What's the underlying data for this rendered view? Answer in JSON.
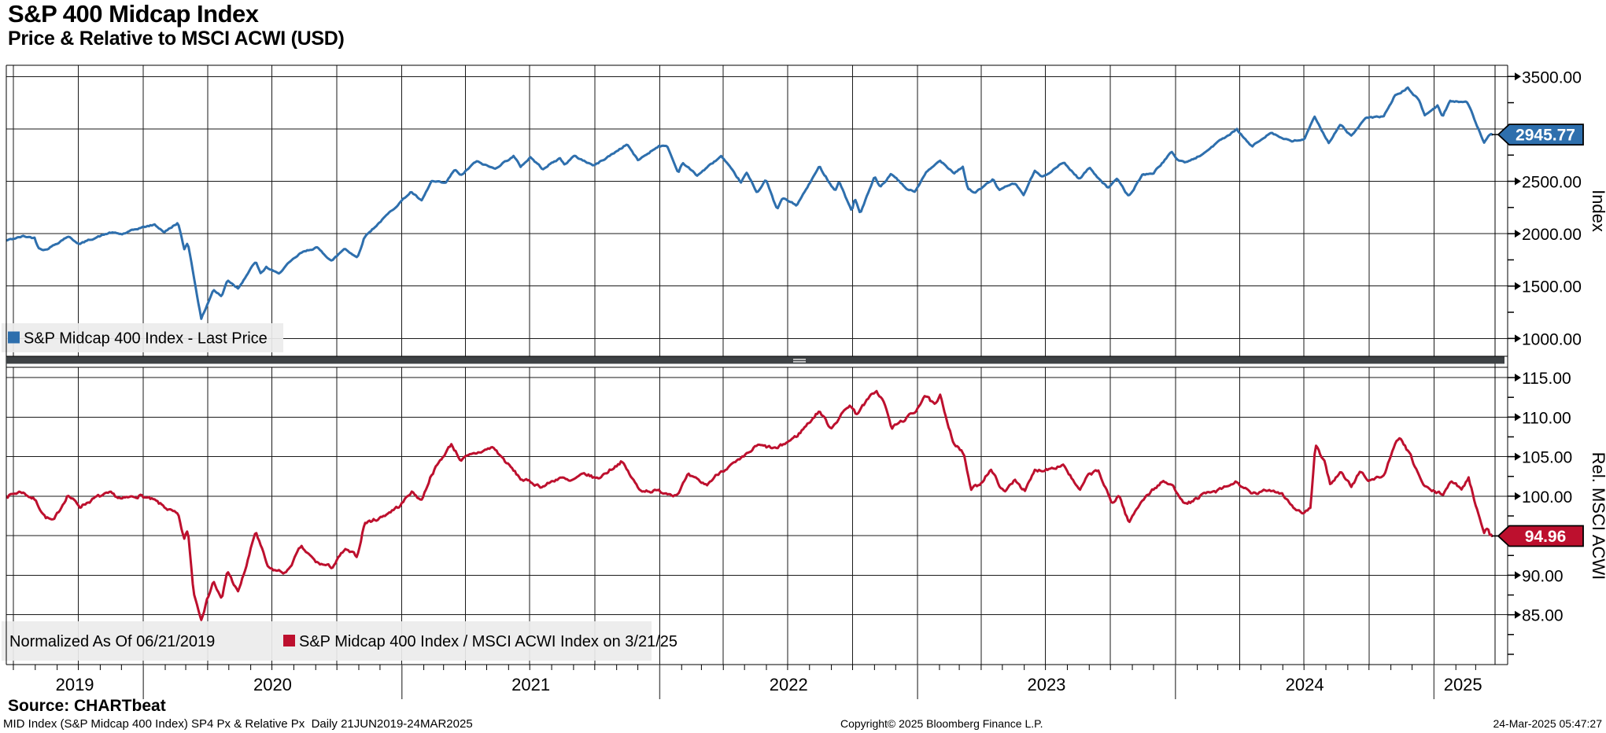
{
  "header": {
    "title": "S&P 400 Midcap Index",
    "subtitle": "Price & Relative to MSCI ACWI (USD)"
  },
  "footer": {
    "source": "Source: CHARTbeat",
    "left": "MID Index (S&P Midcap 400 Index) SP4 Px & Relative Px  Daily 21JUN2019-24MAR2025",
    "center": "Copyright© 2025 Bloomberg Finance L.P.",
    "right": "24-Mar-2025 05:47:27"
  },
  "x_axis": {
    "start": "2019-06-21",
    "end": "2025-03-24",
    "years": [
      "2019",
      "2020",
      "2021",
      "2022",
      "2023",
      "2024",
      "2025"
    ]
  },
  "chart_data": [
    {
      "type": "line",
      "panel": "price",
      "legend": "S&P Midcap 400 Index - Last Price",
      "axis_title": "Index",
      "color": "#2e6fad",
      "ylim": [
        830,
        3607
      ],
      "grid": true,
      "legend_position": "bottom-left-inside",
      "yticks": [
        {
          "v": 1000,
          "label": "1000.00"
        },
        {
          "v": 1500,
          "label": "1500.00"
        },
        {
          "v": 2000,
          "label": "2000.00"
        },
        {
          "v": 2500,
          "label": "2500.00"
        },
        {
          "v": 3000,
          "label": "3000.00"
        },
        {
          "v": 3500,
          "label": "3500.00"
        }
      ],
      "minor_step": 250,
      "last": {
        "value": 2945.77,
        "label": "2945.77"
      },
      "anchors": [
        [
          "2019-06-21",
          1935
        ],
        [
          "2019-07-15",
          1975
        ],
        [
          "2019-07-31",
          1960
        ],
        [
          "2019-08-05",
          1870
        ],
        [
          "2019-08-15",
          1845
        ],
        [
          "2019-08-30",
          1900
        ],
        [
          "2019-09-16",
          1975
        ],
        [
          "2019-10-03",
          1900
        ],
        [
          "2019-10-18",
          1945
        ],
        [
          "2019-11-15",
          2010
        ],
        [
          "2019-12-02",
          1995
        ],
        [
          "2019-12-27",
          2055
        ],
        [
          "2020-01-17",
          2085
        ],
        [
          "2020-01-31",
          2015
        ],
        [
          "2020-02-19",
          2105
        ],
        [
          "2020-02-28",
          1850
        ],
        [
          "2020-03-04",
          1920
        ],
        [
          "2020-03-23",
          1185
        ],
        [
          "2020-04-09",
          1465
        ],
        [
          "2020-04-21",
          1400
        ],
        [
          "2020-04-29",
          1560
        ],
        [
          "2020-05-14",
          1480
        ],
        [
          "2020-06-08",
          1735
        ],
        [
          "2020-06-15",
          1615
        ],
        [
          "2020-06-23",
          1680
        ],
        [
          "2020-07-10",
          1615
        ],
        [
          "2020-07-22",
          1700
        ],
        [
          "2020-08-11",
          1815
        ],
        [
          "2020-09-02",
          1870
        ],
        [
          "2020-09-24",
          1740
        ],
        [
          "2020-10-12",
          1860
        ],
        [
          "2020-10-30",
          1770
        ],
        [
          "2020-11-09",
          1970
        ],
        [
          "2020-11-30",
          2105
        ],
        [
          "2020-12-31",
          2310
        ],
        [
          "2021-01-14",
          2400
        ],
        [
          "2021-01-29",
          2310
        ],
        [
          "2021-02-12",
          2500
        ],
        [
          "2021-03-04",
          2480
        ],
        [
          "2021-03-17",
          2615
        ],
        [
          "2021-03-25",
          2550
        ],
        [
          "2021-04-16",
          2690
        ],
        [
          "2021-05-12",
          2620
        ],
        [
          "2021-06-08",
          2740
        ],
        [
          "2021-06-18",
          2640
        ],
        [
          "2021-07-02",
          2730
        ],
        [
          "2021-07-19",
          2620
        ],
        [
          "2021-08-13",
          2720
        ],
        [
          "2021-08-19",
          2660
        ],
        [
          "2021-09-02",
          2740
        ],
        [
          "2021-09-30",
          2650
        ],
        [
          "2021-10-26",
          2760
        ],
        [
          "2021-11-16",
          2855
        ],
        [
          "2021-12-01",
          2700
        ],
        [
          "2021-12-31",
          2840
        ],
        [
          "2022-01-12",
          2830
        ],
        [
          "2022-01-27",
          2580
        ],
        [
          "2022-02-02",
          2680
        ],
        [
          "2022-02-23",
          2555
        ],
        [
          "2022-03-29",
          2740
        ],
        [
          "2022-04-26",
          2490
        ],
        [
          "2022-05-04",
          2580
        ],
        [
          "2022-05-19",
          2390
        ],
        [
          "2022-05-31",
          2520
        ],
        [
          "2022-06-16",
          2230
        ],
        [
          "2022-06-24",
          2340
        ],
        [
          "2022-07-14",
          2270
        ],
        [
          "2022-08-15",
          2640
        ],
        [
          "2022-09-06",
          2410
        ],
        [
          "2022-09-12",
          2500
        ],
        [
          "2022-09-30",
          2210
        ],
        [
          "2022-10-04",
          2340
        ],
        [
          "2022-10-12",
          2195
        ],
        [
          "2022-11-01",
          2540
        ],
        [
          "2022-11-09",
          2440
        ],
        [
          "2022-11-25",
          2570
        ],
        [
          "2022-12-16",
          2430
        ],
        [
          "2022-12-28",
          2400
        ],
        [
          "2023-01-13",
          2580
        ],
        [
          "2023-02-02",
          2700
        ],
        [
          "2023-02-22",
          2580
        ],
        [
          "2023-03-06",
          2640
        ],
        [
          "2023-03-13",
          2430
        ],
        [
          "2023-03-24",
          2390
        ],
        [
          "2023-04-18",
          2520
        ],
        [
          "2023-04-26",
          2420
        ],
        [
          "2023-05-19",
          2480
        ],
        [
          "2023-05-31",
          2370
        ],
        [
          "2023-06-16",
          2600
        ],
        [
          "2023-06-26",
          2540
        ],
        [
          "2023-07-27",
          2680
        ],
        [
          "2023-08-18",
          2520
        ],
        [
          "2023-09-01",
          2630
        ],
        [
          "2023-09-27",
          2440
        ],
        [
          "2023-10-11",
          2520
        ],
        [
          "2023-10-27",
          2350
        ],
        [
          "2023-11-15",
          2560
        ],
        [
          "2023-12-01",
          2580
        ],
        [
          "2023-12-27",
          2780
        ],
        [
          "2024-01-05",
          2700
        ],
        [
          "2024-01-17",
          2680
        ],
        [
          "2024-02-09",
          2760
        ],
        [
          "2024-02-29",
          2870
        ],
        [
          "2024-03-28",
          2990
        ],
        [
          "2024-04-18",
          2830
        ],
        [
          "2024-05-15",
          2970
        ],
        [
          "2024-05-31",
          2910
        ],
        [
          "2024-06-14",
          2880
        ],
        [
          "2024-07-01",
          2900
        ],
        [
          "2024-07-16",
          3110
        ],
        [
          "2024-08-05",
          2870
        ],
        [
          "2024-08-22",
          3040
        ],
        [
          "2024-09-06",
          2930
        ],
        [
          "2024-09-26",
          3100
        ],
        [
          "2024-10-22",
          3120
        ],
        [
          "2024-11-06",
          3310
        ],
        [
          "2024-11-25",
          3390
        ],
        [
          "2024-12-11",
          3270
        ],
        [
          "2024-12-19",
          3130
        ],
        [
          "2025-01-06",
          3220
        ],
        [
          "2025-01-13",
          3120
        ],
        [
          "2025-01-24",
          3270
        ],
        [
          "2025-02-18",
          3250
        ],
        [
          "2025-02-28",
          3080
        ],
        [
          "2025-03-13",
          2870
        ],
        [
          "2025-03-21",
          2940
        ],
        [
          "2025-03-24",
          2945.77
        ]
      ]
    },
    {
      "type": "line",
      "panel": "relative",
      "legend_note": "Normalized As Of 06/21/2019",
      "legend": "S&P Midcap 400 Index / MSCI ACWI Index on 3/21/25",
      "axis_title": "Rel. MSCI ACWI",
      "color": "#bd102e",
      "ylim": [
        78.7,
        116.3
      ],
      "grid": true,
      "legend_position": "bottom-left-inside",
      "yticks": [
        {
          "v": 85,
          "label": "85.00"
        },
        {
          "v": 90,
          "label": "90.00"
        },
        {
          "v": 95,
          "label": "95.00"
        },
        {
          "v": 100,
          "label": "100.00"
        },
        {
          "v": 105,
          "label": "105.00"
        },
        {
          "v": 110,
          "label": "110.00"
        },
        {
          "v": 115,
          "label": "115.00"
        }
      ],
      "minor_step": 2.5,
      "last": {
        "value": 94.96,
        "label": "94.96"
      },
      "anchors": [
        [
          "2019-06-21",
          100
        ],
        [
          "2019-07-12",
          100.6
        ],
        [
          "2019-07-31",
          99.6
        ],
        [
          "2019-08-15",
          97.4
        ],
        [
          "2019-08-27",
          96.8
        ],
        [
          "2019-09-16",
          100.2
        ],
        [
          "2019-10-03",
          98.7
        ],
        [
          "2019-10-28",
          99.9
        ],
        [
          "2019-11-15",
          100.3
        ],
        [
          "2019-12-02",
          99.6
        ],
        [
          "2019-12-27",
          100.1
        ],
        [
          "2020-01-17",
          99.4
        ],
        [
          "2020-02-19",
          97.6
        ],
        [
          "2020-02-28",
          94.5
        ],
        [
          "2020-03-04",
          95.8
        ],
        [
          "2020-03-12",
          88.0
        ],
        [
          "2020-03-18",
          86.0
        ],
        [
          "2020-03-23",
          84.6
        ],
        [
          "2020-04-09",
          89.3
        ],
        [
          "2020-04-21",
          86.8
        ],
        [
          "2020-04-29",
          90.6
        ],
        [
          "2020-05-14",
          87.8
        ],
        [
          "2020-05-26",
          91.2
        ],
        [
          "2020-06-08",
          95.6
        ],
        [
          "2020-06-26",
          90.8
        ],
        [
          "2020-07-22",
          90.3
        ],
        [
          "2020-08-11",
          93.6
        ],
        [
          "2020-09-02",
          91.6
        ],
        [
          "2020-09-24",
          91.0
        ],
        [
          "2020-10-12",
          93.2
        ],
        [
          "2020-10-30",
          92.4
        ],
        [
          "2020-11-09",
          96.6
        ],
        [
          "2020-11-30",
          97.2
        ],
        [
          "2020-12-31",
          98.9
        ],
        [
          "2021-01-14",
          100.6
        ],
        [
          "2021-01-29",
          99.5
        ],
        [
          "2021-02-12",
          102.8
        ],
        [
          "2021-03-12",
          106.6
        ],
        [
          "2021-03-25",
          104.6
        ],
        [
          "2021-04-16",
          105.4
        ],
        [
          "2021-05-10",
          106.2
        ],
        [
          "2021-06-18",
          102.2
        ],
        [
          "2021-07-19",
          101.2
        ],
        [
          "2021-08-13",
          102.4
        ],
        [
          "2021-08-27",
          101.8
        ],
        [
          "2021-09-17",
          102.8
        ],
        [
          "2021-10-05",
          102.2
        ],
        [
          "2021-11-08",
          104.4
        ],
        [
          "2021-12-03",
          100.8
        ],
        [
          "2021-12-31",
          100.6
        ],
        [
          "2022-01-25",
          100.2
        ],
        [
          "2022-02-10",
          102.6
        ],
        [
          "2022-03-08",
          101.4
        ],
        [
          "2022-03-29",
          103.2
        ],
        [
          "2022-04-26",
          104.6
        ],
        [
          "2022-05-19",
          106.4
        ],
        [
          "2022-06-16",
          106.0
        ],
        [
          "2022-07-14",
          107.6
        ],
        [
          "2022-08-15",
          110.8
        ],
        [
          "2022-08-31",
          108.6
        ],
        [
          "2022-09-27",
          111.6
        ],
        [
          "2022-10-06",
          110.4
        ],
        [
          "2022-11-03",
          113.4
        ],
        [
          "2022-11-15",
          111.8
        ],
        [
          "2022-11-25",
          108.6
        ],
        [
          "2022-12-15",
          109.8
        ],
        [
          "2022-12-28",
          110.6
        ],
        [
          "2023-01-11",
          112.8
        ],
        [
          "2023-01-26",
          111.4
        ],
        [
          "2023-02-02",
          112.6
        ],
        [
          "2023-02-21",
          106.8
        ],
        [
          "2023-03-08",
          105.2
        ],
        [
          "2023-03-17",
          100.8
        ],
        [
          "2023-03-31",
          101.6
        ],
        [
          "2023-04-14",
          103.4
        ],
        [
          "2023-05-04",
          100.4
        ],
        [
          "2023-05-19",
          102.2
        ],
        [
          "2023-06-02",
          100.6
        ],
        [
          "2023-06-16",
          103.2
        ],
        [
          "2023-06-30",
          103.4
        ],
        [
          "2023-07-27",
          104.0
        ],
        [
          "2023-08-18",
          100.6
        ],
        [
          "2023-09-01",
          102.8
        ],
        [
          "2023-09-14",
          103.2
        ],
        [
          "2023-10-03",
          99.0
        ],
        [
          "2023-10-13",
          100.2
        ],
        [
          "2023-10-27",
          96.6
        ],
        [
          "2023-11-15",
          99.6
        ],
        [
          "2023-12-13",
          101.8
        ],
        [
          "2023-12-27",
          101.4
        ],
        [
          "2024-01-17",
          98.9
        ],
        [
          "2024-02-09",
          100.2
        ],
        [
          "2024-02-29",
          100.6
        ],
        [
          "2024-03-28",
          101.8
        ],
        [
          "2024-04-18",
          100.2
        ],
        [
          "2024-05-15",
          100.8
        ],
        [
          "2024-05-31",
          100.4
        ],
        [
          "2024-06-14",
          98.8
        ],
        [
          "2024-06-28",
          97.8
        ],
        [
          "2024-07-10",
          98.4
        ],
        [
          "2024-07-17",
          106.3
        ],
        [
          "2024-07-31",
          104.2
        ],
        [
          "2024-08-07",
          101.6
        ],
        [
          "2024-08-22",
          103.0
        ],
        [
          "2024-09-06",
          101.2
        ],
        [
          "2024-09-19",
          103.2
        ],
        [
          "2024-10-01",
          102.0
        ],
        [
          "2024-10-22",
          102.6
        ],
        [
          "2024-11-06",
          106.2
        ],
        [
          "2024-11-13",
          107.5
        ],
        [
          "2024-11-29",
          105.0
        ],
        [
          "2024-12-18",
          101.2
        ],
        [
          "2024-12-31",
          100.6
        ],
        [
          "2025-01-13",
          100.2
        ],
        [
          "2025-01-24",
          101.8
        ],
        [
          "2025-02-10",
          101.0
        ],
        [
          "2025-02-19",
          102.4
        ],
        [
          "2025-02-28",
          99.2
        ],
        [
          "2025-03-06",
          97.6
        ],
        [
          "2025-03-11",
          96.2
        ],
        [
          "2025-03-13",
          95.4
        ],
        [
          "2025-03-18",
          96.0
        ],
        [
          "2025-03-21",
          94.9
        ],
        [
          "2025-03-24",
          94.96
        ]
      ]
    }
  ]
}
